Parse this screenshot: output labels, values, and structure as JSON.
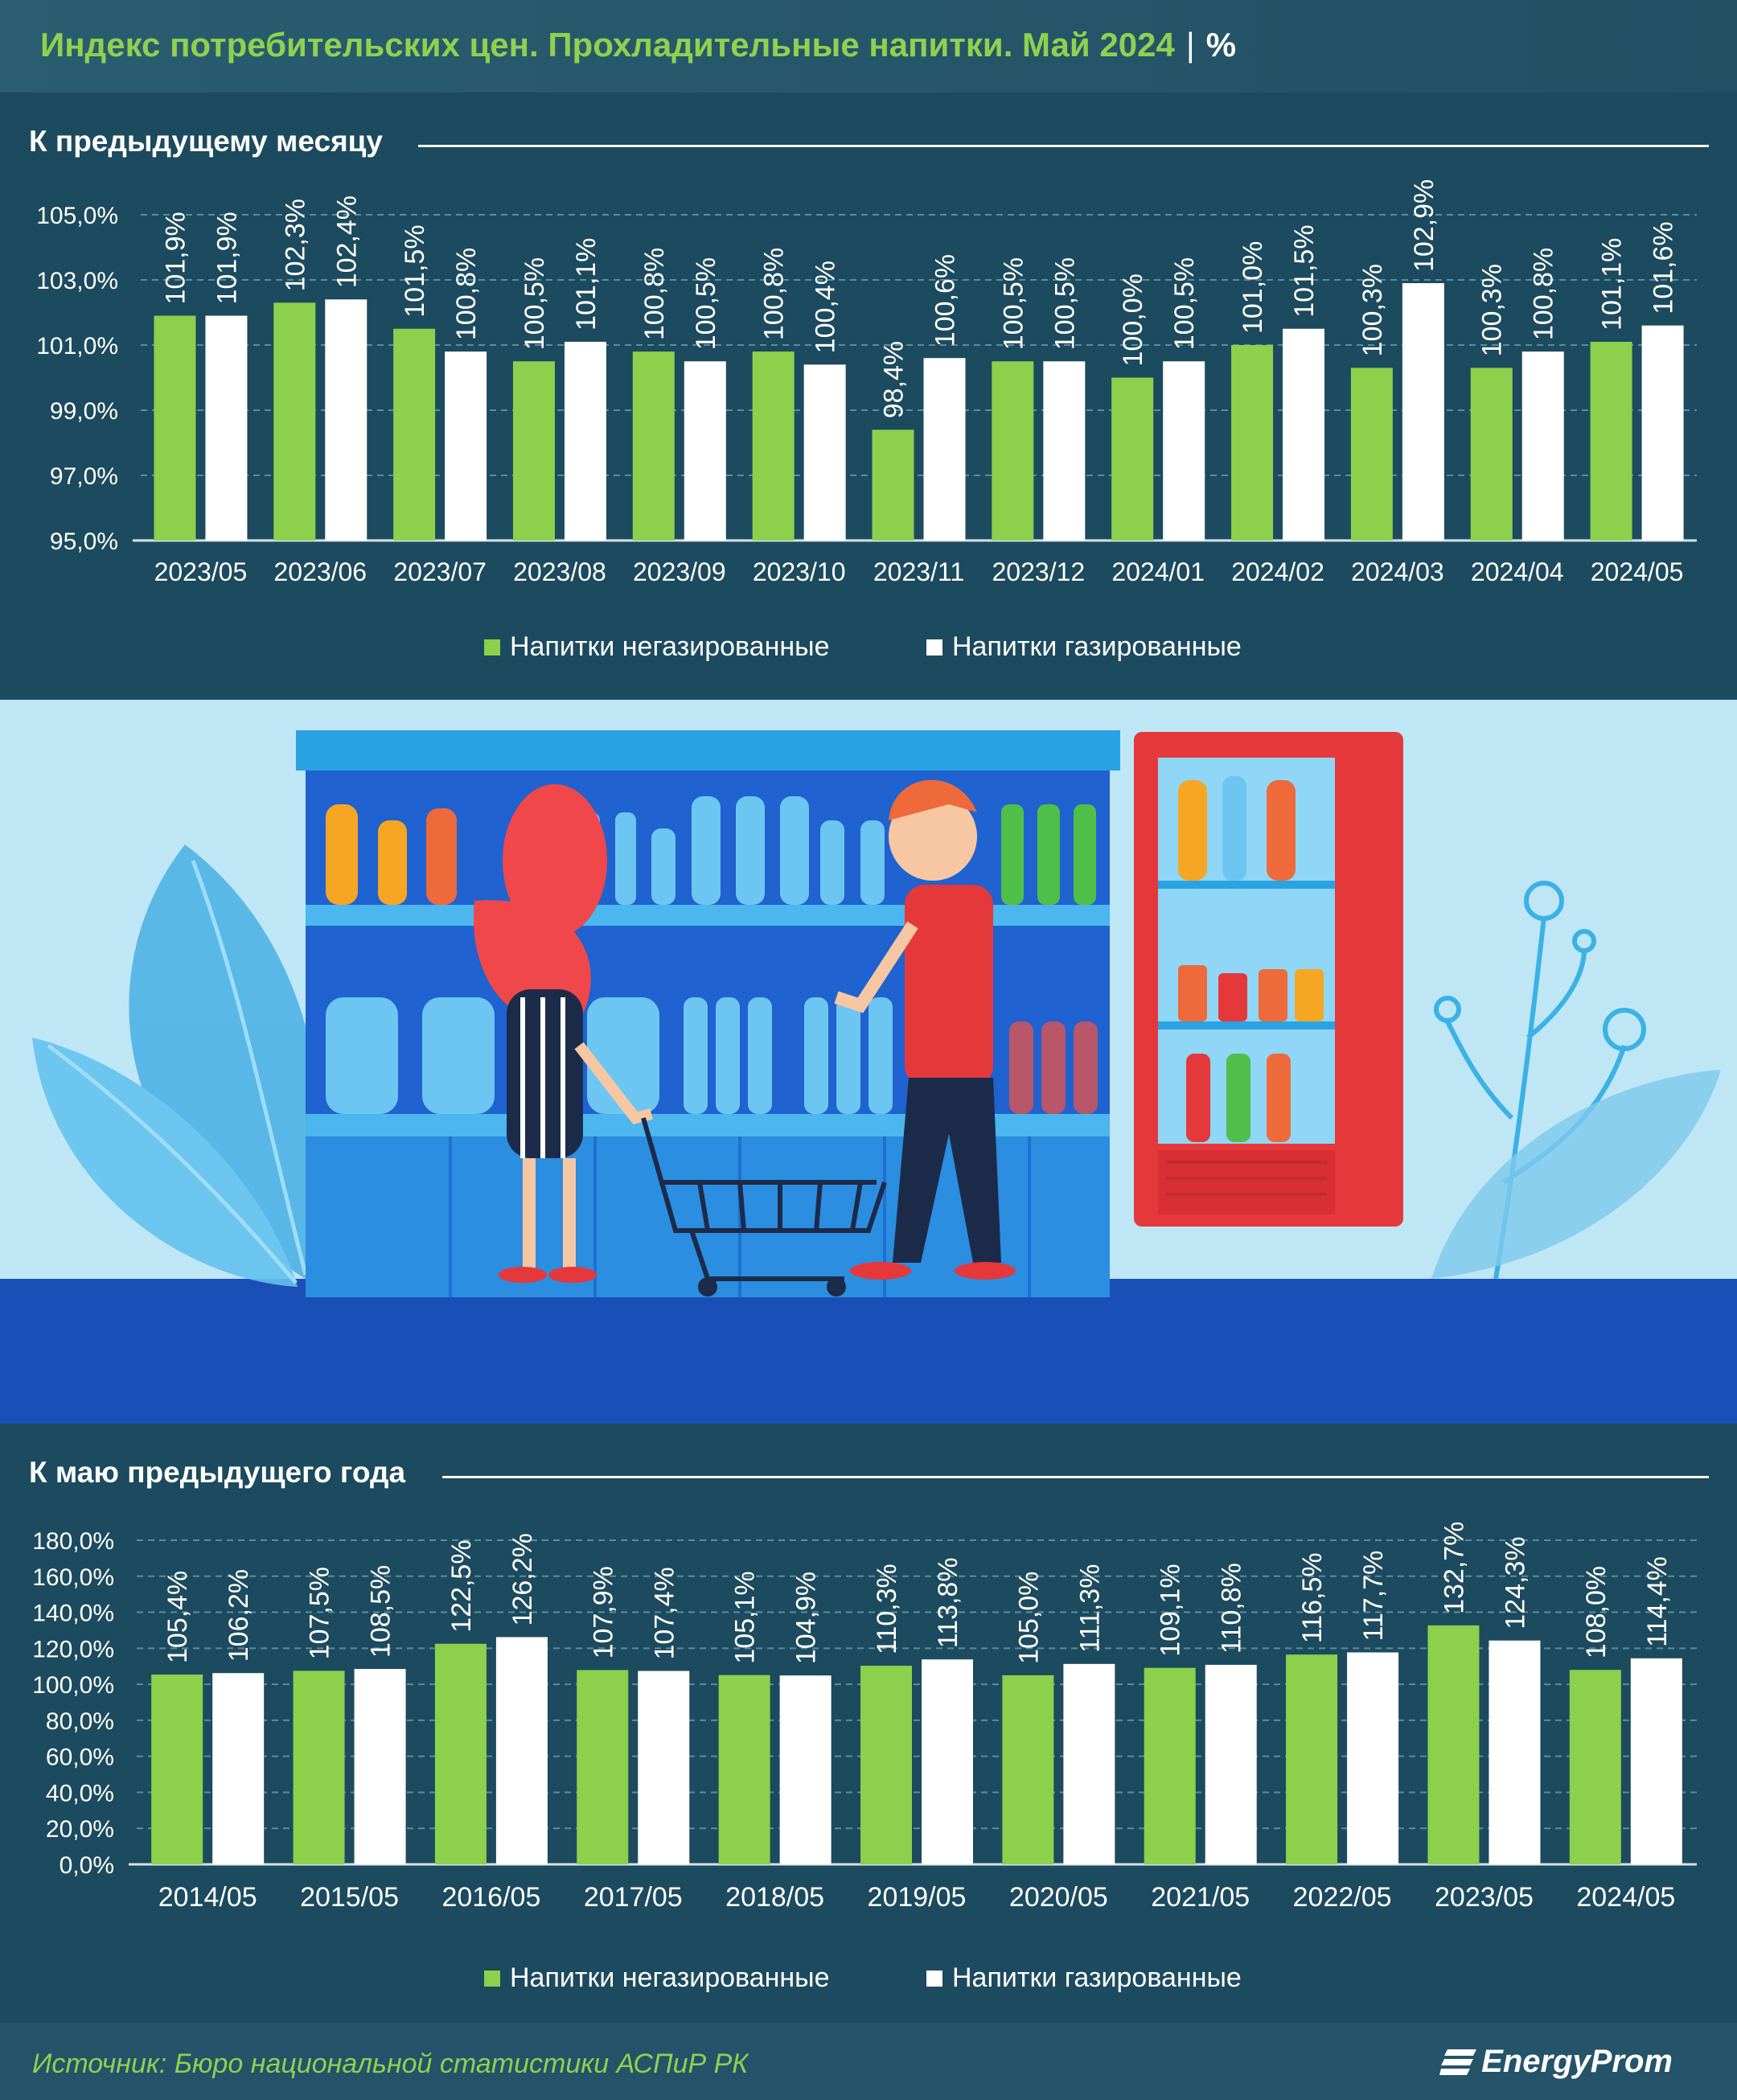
{
  "header": {
    "title": "Индекс потребительских цен. Прохладительные напитки. Май 2024",
    "separator": "|",
    "unit": "%"
  },
  "colors": {
    "green": "#8cd04c",
    "white": "#ffffff",
    "background": "#1c4a5e"
  },
  "chart_data": [
    {
      "type": "bar",
      "title": "К предыдущему месяцу",
      "categories": [
        "2023/05",
        "2023/06",
        "2023/07",
        "2023/08",
        "2023/09",
        "2023/10",
        "2023/11",
        "2023/12",
        "2024/01",
        "2024/02",
        "2024/03",
        "2024/04",
        "2024/05"
      ],
      "series": [
        {
          "name": "Напитки негазированные",
          "color": "#8cd04c",
          "values": [
            101.9,
            102.3,
            101.5,
            100.5,
            100.8,
            100.8,
            98.4,
            100.5,
            100.0,
            101.0,
            100.3,
            100.3,
            101.1
          ],
          "labels": [
            "101,9%",
            "102,3%",
            "101,5%",
            "100,5%",
            "100,8%",
            "100,8%",
            "98,4%",
            "100,5%",
            "100,0%",
            "101,0%",
            "100,3%",
            "100,3%",
            "101,1%"
          ]
        },
        {
          "name": "Напитки газированные",
          "color": "#ffffff",
          "values": [
            101.9,
            102.4,
            100.8,
            101.1,
            100.5,
            100.4,
            100.6,
            100.5,
            100.5,
            101.5,
            102.9,
            100.8,
            101.6
          ],
          "labels": [
            "101,9%",
            "102,4%",
            "100,8%",
            "101,1%",
            "100,5%",
            "100,4%",
            "100,6%",
            "100,5%",
            "100,5%",
            "101,5%",
            "102,9%",
            "100,8%",
            "101,6%"
          ]
        }
      ],
      "yticks": [
        95,
        97,
        99,
        101,
        103,
        105
      ],
      "ytick_labels": [
        "95,0%",
        "97,0%",
        "99,0%",
        "101,0%",
        "103,0%",
        "105,0%"
      ],
      "ylim": [
        95,
        105
      ],
      "grid": true,
      "legend": "bottom"
    },
    {
      "type": "bar",
      "title": "К маю предыдущего года",
      "categories": [
        "2014/05",
        "2015/05",
        "2016/05",
        "2017/05",
        "2018/05",
        "2019/05",
        "2020/05",
        "2021/05",
        "2022/05",
        "2023/05",
        "2024/05"
      ],
      "series": [
        {
          "name": "Напитки негазированные",
          "color": "#8cd04c",
          "values": [
            105.4,
            107.5,
            122.5,
            107.9,
            105.1,
            110.3,
            105.0,
            109.1,
            116.5,
            132.7,
            108.0
          ],
          "labels": [
            "105,4%",
            "107,5%",
            "122,5%",
            "107,9%",
            "105,1%",
            "110,3%",
            "105,0%",
            "109,1%",
            "116,5%",
            "132,7%",
            "108,0%"
          ]
        },
        {
          "name": "Напитки газированные",
          "color": "#ffffff",
          "values": [
            106.2,
            108.5,
            126.2,
            107.4,
            104.9,
            113.8,
            111.3,
            110.8,
            117.7,
            124.3,
            114.4
          ],
          "labels": [
            "106,2%",
            "108,5%",
            "126,2%",
            "107,4%",
            "104,9%",
            "113,8%",
            "111,3%",
            "110,8%",
            "117,7%",
            "124,3%",
            "114,4%"
          ]
        }
      ],
      "yticks": [
        0,
        20,
        40,
        60,
        80,
        100,
        120,
        140,
        160,
        180
      ],
      "ytick_labels": [
        "0,0%",
        "20,0%",
        "40,0%",
        "60,0%",
        "80,0%",
        "100,0%",
        "120,0%",
        "140,0%",
        "160,0%",
        "180,0%"
      ],
      "ylim": [
        0,
        180
      ],
      "grid": true,
      "legend": "bottom"
    }
  ],
  "footer": {
    "source": "Источник: Бюро национальной статистики АСПиР РК",
    "brand": "EnergyProm"
  }
}
